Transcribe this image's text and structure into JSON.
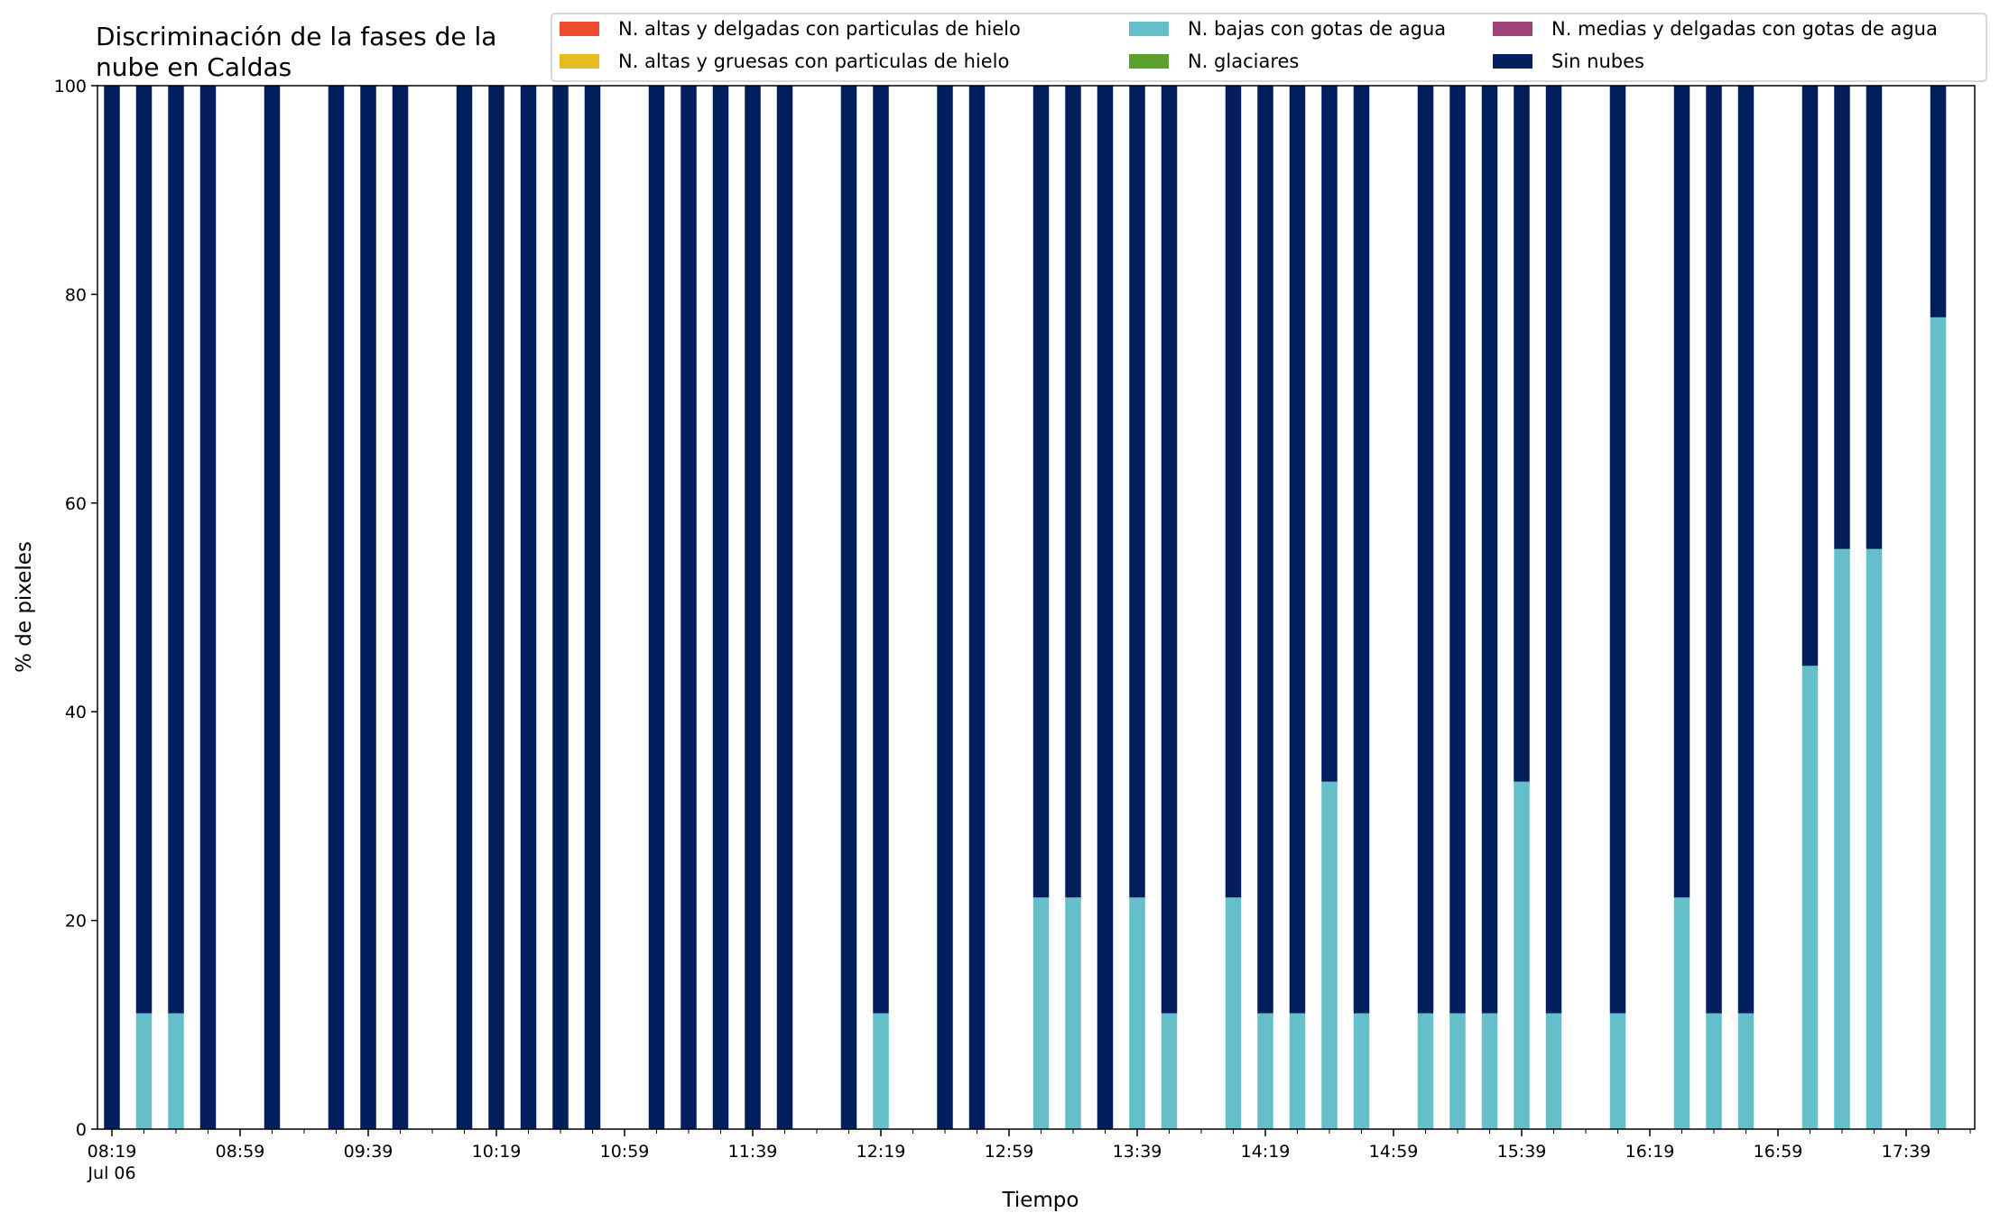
{
  "chart_data": {
    "type": "bar",
    "stacked": true,
    "title_lines": [
      "Discriminación de la fases de la",
      "nube en Caldas"
    ],
    "xlabel": "Tiempo",
    "ylabel": "% de pixeles",
    "ylim": [
      0,
      100
    ],
    "yticks": [
      0,
      20,
      40,
      60,
      80,
      100
    ],
    "xtick_labels": [
      "08:19",
      "08:59",
      "09:39",
      "10:19",
      "10:59",
      "11:39",
      "12:19",
      "12:59",
      "13:39",
      "14:19",
      "14:59",
      "15:39",
      "16:19",
      "16:59",
      "17:39"
    ],
    "xtick_date": "Jul 06",
    "x_start": "08:19",
    "x_end": "17:59",
    "interval_minutes": 10,
    "legend_position": "top-right",
    "legend_ncol": 3,
    "x": [
      "08:19",
      "08:29",
      "08:39",
      "08:49",
      "09:09",
      "09:29",
      "09:39",
      "09:49",
      "10:09",
      "10:19",
      "10:29",
      "10:39",
      "10:49",
      "11:09",
      "11:19",
      "11:29",
      "11:39",
      "11:49",
      "12:09",
      "12:19",
      "12:39",
      "12:49",
      "13:09",
      "13:19",
      "13:29",
      "13:39",
      "13:49",
      "14:09",
      "14:19",
      "14:29",
      "14:39",
      "14:49",
      "15:09",
      "15:19",
      "15:29",
      "15:39",
      "15:49",
      "16:09",
      "16:29",
      "16:39",
      "16:49",
      "17:09",
      "17:19",
      "17:29",
      "17:49"
    ],
    "series": [
      {
        "name": "N. altas y delgadas con particulas de hielo",
        "color": "#ef4b2a",
        "values": [
          0,
          0,
          0,
          0,
          0,
          0,
          0,
          0,
          0,
          0,
          0,
          0,
          0,
          0,
          0,
          0,
          0,
          0,
          0,
          0,
          0,
          0,
          0,
          0,
          0,
          0,
          0,
          0,
          0,
          0,
          0,
          0,
          0,
          0,
          0,
          0,
          0,
          0,
          0,
          0,
          0,
          0,
          0,
          0,
          0
        ]
      },
      {
        "name": "N. altas y gruesas con particulas de hielo",
        "color": "#e5bc1d",
        "values": [
          0,
          0,
          0,
          0,
          0,
          0,
          0,
          0,
          0,
          0,
          0,
          0,
          0,
          0,
          0,
          0,
          0,
          0,
          0,
          0,
          0,
          0,
          0,
          0,
          0,
          0,
          0,
          0,
          0,
          0,
          0,
          0,
          0,
          0,
          0,
          0,
          0,
          0,
          0,
          0,
          0,
          0,
          0,
          0,
          0
        ]
      },
      {
        "name": "N. bajas con gotas de agua",
        "color": "#65bfca",
        "values": [
          0,
          11.1,
          11.1,
          0,
          0,
          0,
          0,
          0,
          0,
          0,
          0,
          0,
          0,
          0,
          0,
          0,
          0,
          0,
          0,
          11.1,
          0,
          0,
          22.2,
          22.2,
          0,
          22.2,
          11.1,
          22.2,
          11.1,
          11.1,
          33.3,
          11.1,
          11.1,
          11.1,
          11.1,
          33.3,
          11.1,
          11.1,
          22.2,
          11.1,
          11.1,
          44.4,
          55.6,
          55.6,
          77.8
        ]
      },
      {
        "name": "N. glaciares",
        "color": "#5b9f2c",
        "values": [
          0,
          0,
          0,
          0,
          0,
          0,
          0,
          0,
          0,
          0,
          0,
          0,
          0,
          0,
          0,
          0,
          0,
          0,
          0,
          0,
          0,
          0,
          0,
          0,
          0,
          0,
          0,
          0,
          0,
          0,
          0,
          0,
          0,
          0,
          0,
          0,
          0,
          0,
          0,
          0,
          0,
          0,
          0,
          0,
          0
        ]
      },
      {
        "name": "N. medias y delgadas con gotas de agua",
        "color": "#a2407a",
        "values": [
          0,
          0,
          0,
          0,
          0,
          0,
          0,
          0,
          0,
          0,
          0,
          0,
          0,
          0,
          0,
          0,
          0,
          0,
          0,
          0,
          0,
          0,
          0,
          0,
          0,
          0,
          0,
          0,
          0,
          0,
          0,
          0,
          0,
          0,
          0,
          0,
          0,
          0,
          0,
          0,
          0,
          0,
          0,
          0,
          0
        ]
      },
      {
        "name": "Sin nubes",
        "color": "#001f5c",
        "values": [
          100,
          88.9,
          88.9,
          100,
          100,
          100,
          100,
          100,
          100,
          100,
          100,
          100,
          100,
          100,
          100,
          100,
          100,
          100,
          100,
          88.9,
          100,
          100,
          77.8,
          77.8,
          100,
          77.8,
          88.9,
          77.8,
          88.9,
          88.9,
          66.7,
          88.9,
          88.9,
          88.9,
          88.9,
          66.7,
          88.9,
          88.9,
          77.8,
          88.9,
          88.9,
          55.6,
          44.4,
          44.4,
          22.2
        ]
      }
    ]
  }
}
